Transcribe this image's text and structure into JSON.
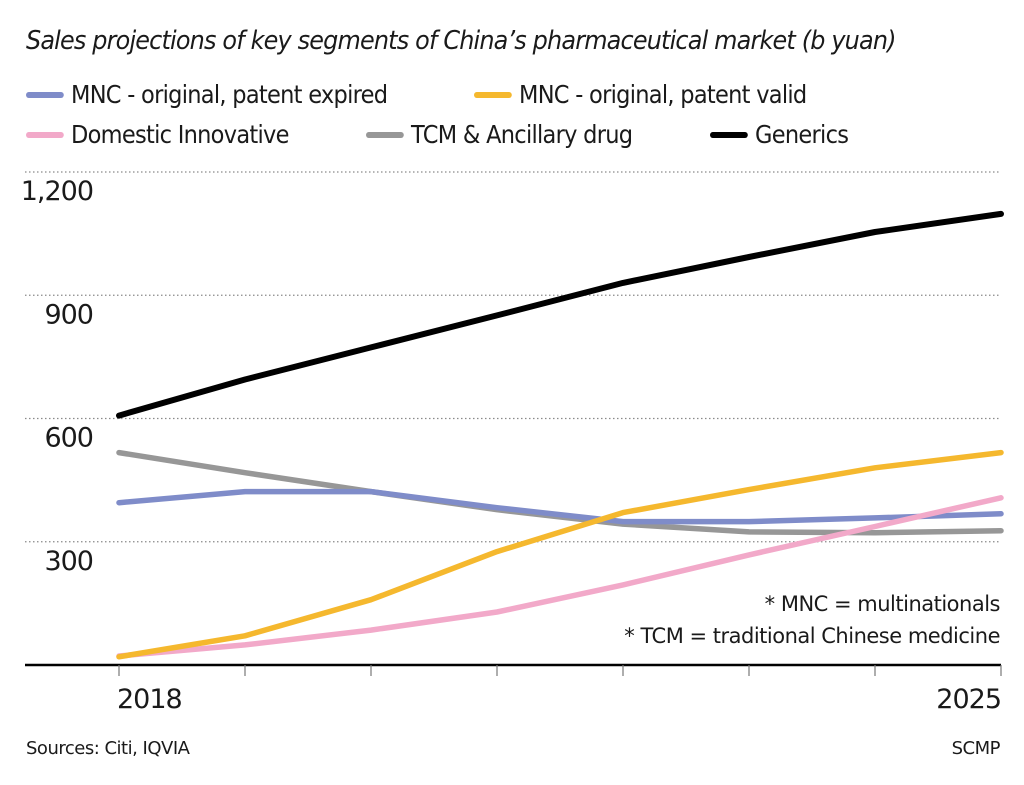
{
  "chart_data": {
    "type": "line",
    "title": "Sales projections of key segments of China’s pharmaceutical market (b yuan)",
    "xlabel": "",
    "ylabel": "",
    "x": [
      2018,
      2019,
      2020,
      2021,
      2022,
      2023,
      2024,
      2025
    ],
    "x_tick_labels": [
      "2018",
      "2025"
    ],
    "y_ticks": [
      300,
      600,
      900,
      1200
    ],
    "y_tick_labels": [
      "300",
      "600",
      "900",
      "1,200"
    ],
    "ylim": [
      0,
      1200
    ],
    "grid": "horizontal dotted",
    "legend_placement": "top",
    "series": [
      {
        "name": "MNC - original, patent expired",
        "color": "#7f8cc9",
        "values": [
          395,
          422,
          422,
          383,
          349,
          349,
          358,
          368
        ]
      },
      {
        "name": "MNC - original, patent valid",
        "color": "#f5b82e",
        "values": [
          20,
          71,
          159,
          276,
          371,
          427,
          480,
          517
        ]
      },
      {
        "name": "Domestic Innovative",
        "color": "#f2a9c9",
        "values": [
          22,
          49,
          85,
          129,
          195,
          268,
          337,
          407
        ]
      },
      {
        "name": "TCM & Ancillary drug",
        "color": "#979797",
        "values": [
          517,
          468,
          422,
          378,
          343,
          324,
          322,
          327
        ]
      },
      {
        "name": "Generics",
        "color": "#000000",
        "values": [
          607,
          695,
          773,
          851,
          930,
          993,
          1054,
          1098
        ]
      }
    ],
    "annotations": [
      "* MNC = multinationals",
      "* TCM = traditional Chinese medicine"
    ]
  },
  "footer": {
    "source": "Sources: Citi, IQVIA",
    "credit": "SCMP"
  }
}
